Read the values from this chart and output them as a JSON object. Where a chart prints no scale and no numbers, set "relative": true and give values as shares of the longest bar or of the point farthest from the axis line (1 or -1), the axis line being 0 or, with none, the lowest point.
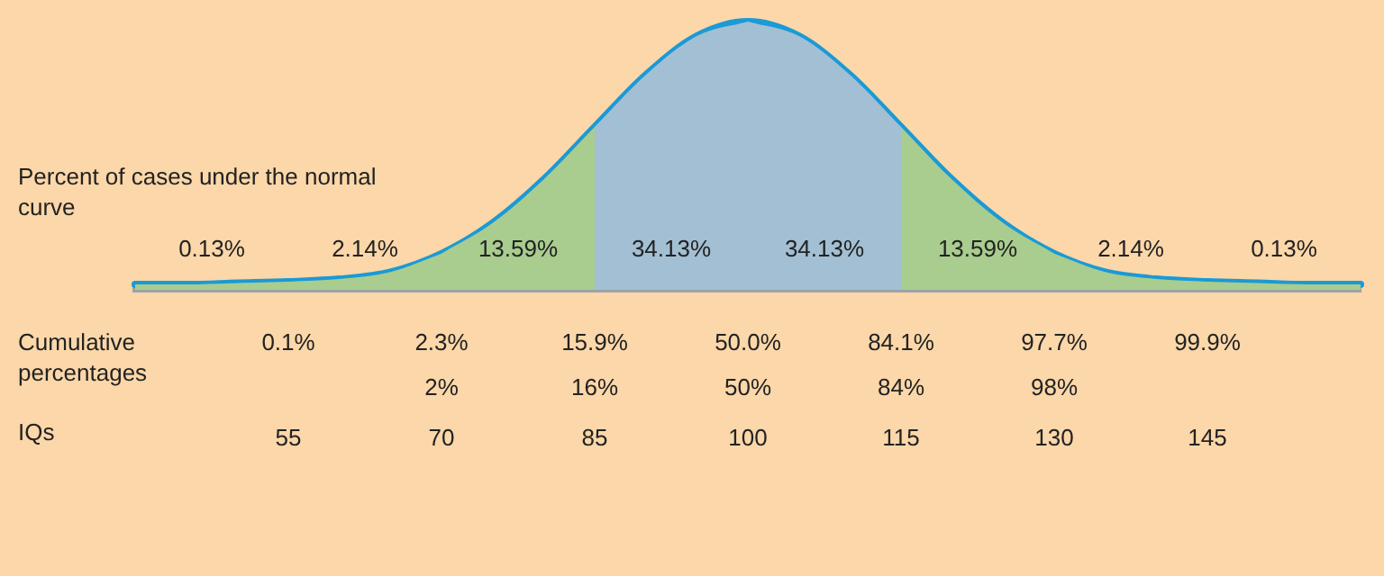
{
  "chart_data": {
    "type": "area",
    "relative": true,
    "ylabel": "Percent of cases under the normal curve",
    "xlabel": "IQs",
    "series": [
      {
        "name": "0.13%",
        "color": "#a9cc8f",
        "x": [
          40,
          45,
          50,
          55
        ],
        "values": [
          0.02,
          0.02,
          0.025,
          0.03
        ]
      },
      {
        "name": "2.14%",
        "color": "#a9cc8f",
        "x": [
          55,
          60,
          65,
          70
        ],
        "values": [
          0.03,
          0.04,
          0.066,
          0.135
        ]
      },
      {
        "name": "13.59%",
        "color": "#a9cc8f",
        "x": [
          70,
          75,
          80,
          85
        ],
        "values": [
          0.135,
          0.249,
          0.411,
          0.607
        ]
      },
      {
        "name": "34.13%",
        "color": "#a3bfd3",
        "x": [
          85,
          90,
          95,
          100
        ],
        "values": [
          0.607,
          0.801,
          0.946,
          1
        ]
      },
      {
        "name": "34.13%",
        "color": "#a3bfd3",
        "x": [
          100,
          105,
          110,
          115
        ],
        "values": [
          1,
          0.946,
          0.801,
          0.607
        ]
      },
      {
        "name": "13.59%",
        "color": "#a9cc8f",
        "x": [
          115,
          120,
          125,
          130
        ],
        "values": [
          0.607,
          0.411,
          0.249,
          0.135
        ]
      },
      {
        "name": "2.14%",
        "color": "#a9cc8f",
        "x": [
          130,
          135,
          140,
          145
        ],
        "values": [
          0.135,
          0.066,
          0.04,
          0.03
        ]
      },
      {
        "name": "0.13%",
        "color": "#a9cc8f",
        "x": [
          145,
          150,
          155,
          160
        ],
        "values": [
          0.03,
          0.025,
          0.02,
          0.02
        ]
      },
      {
        "type": "line",
        "color": "#1a9ad6",
        "x": [
          40,
          45,
          50,
          55,
          60,
          65,
          70,
          75,
          80,
          85,
          90,
          95,
          100,
          105,
          110,
          115,
          120,
          125,
          130,
          135,
          140,
          145,
          150,
          155,
          160
        ],
        "values": [
          0.02,
          0.02,
          0.025,
          0.03,
          0.04,
          0.066,
          0.135,
          0.249,
          0.411,
          0.607,
          0.801,
          0.946,
          1,
          0.946,
          0.801,
          0.607,
          0.411,
          0.249,
          0.135,
          0.066,
          0.04,
          0.03,
          0.025,
          0.02,
          0.02
        ]
      }
    ],
    "xlim": [
      40,
      160
    ],
    "xticks": [
      55,
      70,
      85,
      100,
      115,
      130,
      145
    ],
    "annotations": [
      "Cumulative percentages",
      "0.1%",
      "2.3%",
      "15.9%",
      "50.0%",
      "84.1%",
      "97.7%",
      "99.9%",
      "2%",
      "16%",
      "50%",
      "84%",
      "98%"
    ],
    "legend": false
  }
}
